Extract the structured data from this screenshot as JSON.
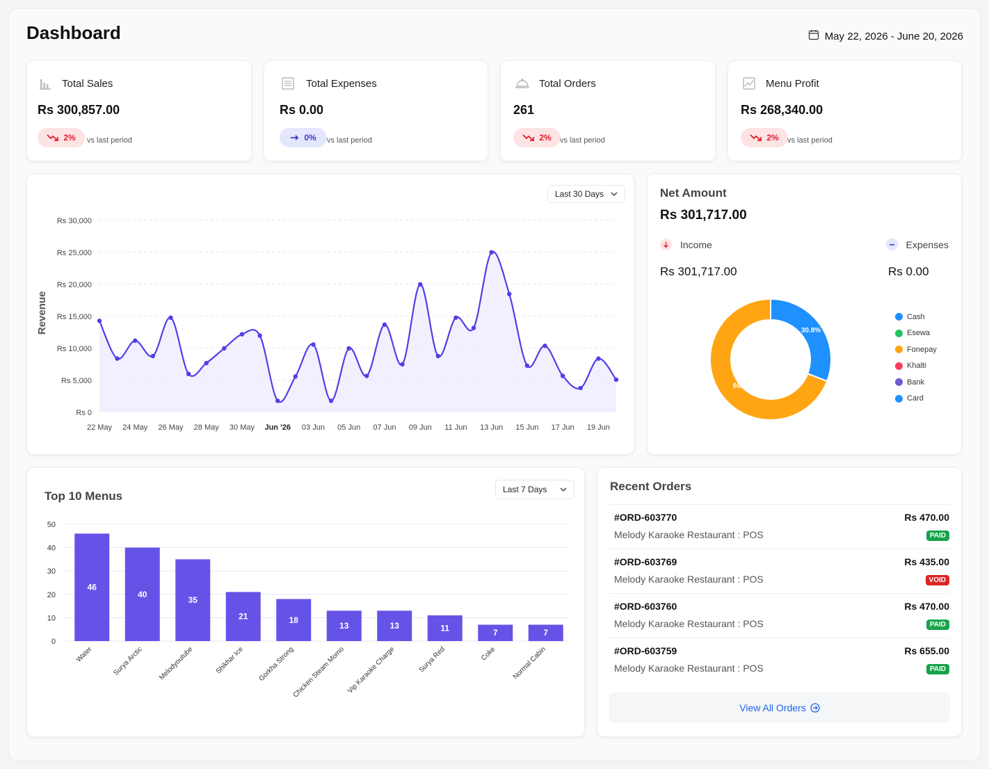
{
  "page": {
    "title": "Dashboard",
    "date_range": "May 22, 2026 - June 20, 2026",
    "calendar_icon": "calendar-icon"
  },
  "stats": [
    {
      "label": "Total Sales",
      "value": "Rs 300,857.00",
      "change": "2%",
      "trend": "down",
      "vs": "vs last period",
      "icon": "bar-chart-icon"
    },
    {
      "label": "Total Expenses",
      "value": "Rs 0.00",
      "change": "0%",
      "trend": "flat",
      "vs": "vs last period",
      "icon": "receipt-icon"
    },
    {
      "label": "Total Orders",
      "value": "261",
      "change": "2%",
      "trend": "down",
      "vs": "vs last period",
      "icon": "cloche-icon"
    },
    {
      "label": "Menu Profit",
      "value": "Rs 268,340.00",
      "change": "2%",
      "trend": "down",
      "vs": "vs last period",
      "icon": "trend-chart-icon"
    }
  ],
  "revenue": {
    "range_label": "Last 30 Days",
    "chart_data": {
      "type": "area",
      "title": "",
      "xlabel": "",
      "ylabel": "Revenue",
      "ylim": [
        0,
        30000
      ],
      "yticks": [
        "Rs 0",
        "Rs 5,000",
        "Rs 10,000",
        "Rs 15,000",
        "Rs 20,000",
        "Rs 25,000",
        "Rs 30,000"
      ],
      "xticks": [
        "22 May",
        "24 May",
        "26 May",
        "28 May",
        "30 May",
        "Jun '26",
        "03 Jun",
        "05 Jun",
        "07 Jun",
        "09 Jun",
        "11 Jun",
        "13 Jun",
        "15 Jun",
        "17 Jun",
        "19 Jun"
      ],
      "grid": true,
      "color": "#4f3fe6",
      "series": [
        {
          "values": [
            14300,
            8400,
            11200,
            8800,
            14800,
            6000,
            7700,
            10000,
            12200,
            12000,
            1800,
            5600,
            10600,
            1800,
            10000,
            5700,
            13700,
            7500,
            20000,
            8800,
            14800,
            13200,
            25000,
            18500,
            7300,
            10400,
            5700,
            3800,
            8400,
            5100
          ]
        }
      ]
    }
  },
  "net_amount": {
    "title": "Net Amount",
    "value": "Rs 301,717.00",
    "income_label": "Income",
    "income_value": "Rs 301,717.00",
    "expenses_label": "Expenses",
    "expenses_value": "Rs 0.00",
    "income_icon": "arrow-down-icon",
    "expenses_icon": "minus-icon",
    "chart_data": {
      "type": "pie",
      "donut": true,
      "labels": [
        "Cash",
        "Esewa",
        "Fonepay",
        "Khalti",
        "Bank",
        "Card"
      ],
      "values": [
        30.8,
        0,
        69.1,
        0,
        0,
        0
      ],
      "slice_labels": [
        "30.8%",
        "",
        "69.1%",
        "",
        "",
        ""
      ],
      "colors": [
        "#1e90ff",
        "#22c55e",
        "#ffa514",
        "#f43f5e",
        "#6d5dd3",
        "#1e90ff"
      ],
      "legend": "right"
    }
  },
  "top_menus": {
    "title": "Top 10 Menus",
    "range_label": "Last 7 Days",
    "chart_data": {
      "type": "bar",
      "categories": [
        "Water",
        "Surya Arctic",
        "Melodyoutube",
        "Shikhar Ice",
        "Gorkha Strong",
        "Chicken Steam Momo",
        "Vip Karaoke Charge",
        "Surya Red",
        "Coke",
        "Normal Cabin"
      ],
      "values": [
        46,
        40,
        35,
        21,
        18,
        13,
        13,
        11,
        7,
        7
      ],
      "ylim": [
        0,
        50
      ],
      "yticks": [
        "0",
        "10",
        "20",
        "30",
        "40",
        "50"
      ],
      "color": "#6553e8",
      "grid": true
    }
  },
  "recent_orders": {
    "title": "Recent Orders",
    "view_all": "View All Orders",
    "view_all_icon": "arrow-circle-right-icon",
    "orders": [
      {
        "id": "#ORD-603770",
        "source": "Melody Karaoke Restaurant : POS",
        "amount": "Rs 470.00",
        "status": "PAID"
      },
      {
        "id": "#ORD-603769",
        "source": "Melody Karaoke Restaurant : POS",
        "amount": "Rs 435.00",
        "status": "VOID"
      },
      {
        "id": "#ORD-603760",
        "source": "Melody Karaoke Restaurant : POS",
        "amount": "Rs 470.00",
        "status": "PAID"
      },
      {
        "id": "#ORD-603759",
        "source": "Melody Karaoke Restaurant : POS",
        "amount": "Rs 655.00",
        "status": "PAID"
      }
    ]
  }
}
